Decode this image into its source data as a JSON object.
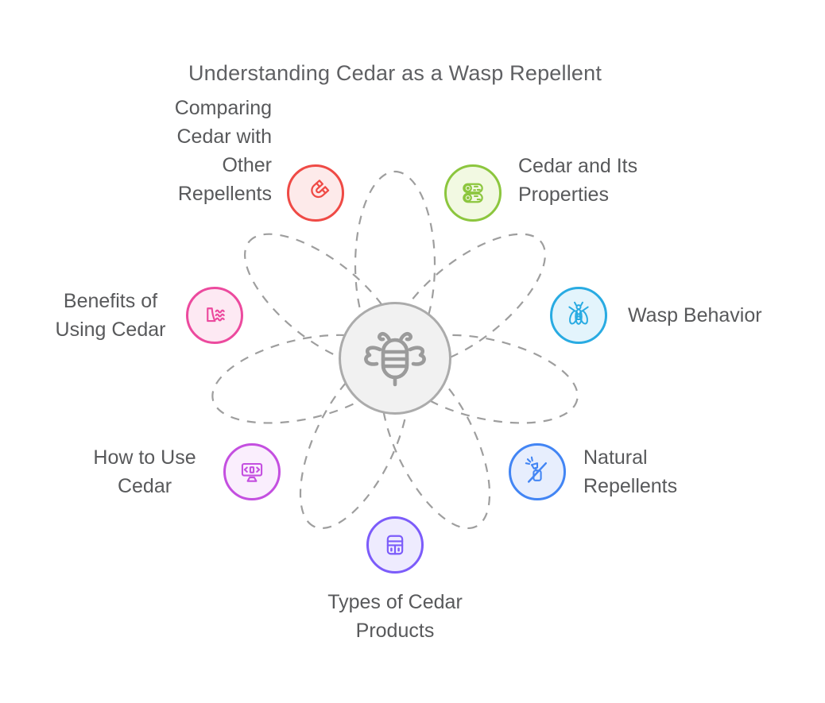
{
  "title": "Understanding Cedar as a Wasp Repellent",
  "colors": {
    "text": "#58595b",
    "title": "#5f6063",
    "dashed_orbits": "#9e9e9e",
    "center_border": "#ababab",
    "center_fill": "#f1f1f1",
    "center_icon": "#9b9b9b"
  },
  "center": {
    "icon": "bee-icon"
  },
  "nodes": [
    {
      "id": "comparing-cedar-with-other-repellents",
      "icon": "magnet-icon",
      "color": "#ef4a45",
      "fill": "#fdeaea",
      "lines": [
        "Comparing",
        "Cedar with",
        "Other",
        "Repellents"
      ]
    },
    {
      "id": "cedar-and-its-properties",
      "icon": "logs-icon",
      "color": "#8cc63e",
      "fill": "#f2f9e2",
      "lines": [
        "Cedar and Its",
        "Properties"
      ]
    },
    {
      "id": "wasp-behavior",
      "icon": "wasp-icon",
      "color": "#29abe2",
      "fill": "#e3f4fc",
      "lines": [
        "Wasp Behavior"
      ]
    },
    {
      "id": "natural-repellents",
      "icon": "no-spray-icon",
      "color": "#4285f4",
      "fill": "#e7eefd",
      "lines": [
        "Natural",
        "Repellents"
      ]
    },
    {
      "id": "types-of-cedar-products",
      "icon": "calculator-icon",
      "color": "#7c5cfa",
      "fill": "#eeebfe",
      "lines": [
        "Types of Cedar",
        "Products"
      ]
    },
    {
      "id": "how-to-use-cedar",
      "icon": "code-monitor-icon",
      "color": "#c44fe0",
      "fill": "#faeefd",
      "lines": [
        "How to Use",
        "Cedar"
      ]
    },
    {
      "id": "benefits-of-using-cedar",
      "icon": "dam-icon",
      "color": "#ec4a9e",
      "fill": "#fde9f3",
      "lines": [
        "Benefits of",
        "Using Cedar"
      ]
    }
  ]
}
